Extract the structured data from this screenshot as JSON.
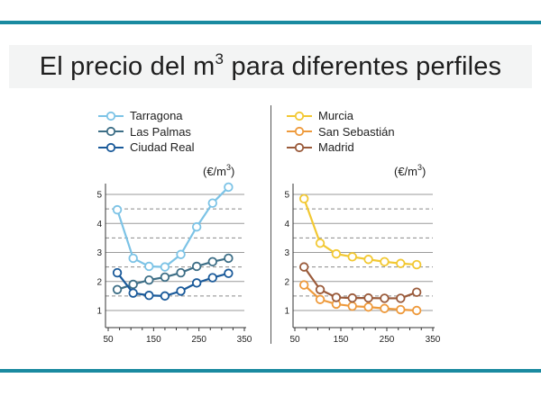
{
  "title": {
    "main": "El precio del m",
    "superscript": "3",
    "rest": " para diferentes perfiles"
  },
  "colors": {
    "band": "#1a8aa0",
    "tarragona": "#7cc3e6",
    "las_palmas": "#3d6e86",
    "ciudad_real": "#1a5a9a",
    "murcia": "#f2c832",
    "san_sebastian": "#ee9a3c",
    "madrid": "#9a5a3a",
    "grid_solid": "#9a9a9a",
    "grid_dashed": "#8a8a8a"
  },
  "chart_data": [
    {
      "type": "line",
      "unit_label": "(€/m",
      "unit_superscript": "3",
      "unit_close": ")",
      "x_ticks": [
        50,
        150,
        250,
        350
      ],
      "y_ticks": [
        1,
        2,
        3,
        4,
        5
      ],
      "xlim": [
        50,
        350
      ],
      "ylim": [
        0.6,
        5.5
      ],
      "x": [
        70,
        105,
        140,
        175,
        210,
        245,
        280,
        315
      ],
      "series": [
        {
          "name": "Tarragona",
          "color_key": "tarragona",
          "values": [
            4.47,
            2.8,
            2.52,
            2.5,
            2.93,
            3.88,
            4.7,
            5.25
          ]
        },
        {
          "name": "Las Palmas",
          "color_key": "las_palmas",
          "values": [
            1.72,
            1.9,
            2.05,
            2.15,
            2.3,
            2.52,
            2.68,
            2.8
          ]
        },
        {
          "name": "Ciudad Real",
          "color_key": "ciudad_real",
          "values": [
            2.3,
            1.6,
            1.52,
            1.5,
            1.67,
            1.95,
            2.13,
            2.28
          ]
        }
      ],
      "legend_position": "top-left",
      "grid": true
    },
    {
      "type": "line",
      "unit_label": "(€/m",
      "unit_superscript": "3",
      "unit_close": ")",
      "x_ticks": [
        50,
        150,
        250,
        350
      ],
      "y_ticks": [
        1,
        2,
        3,
        4,
        5
      ],
      "xlim": [
        50,
        350
      ],
      "ylim": [
        0.6,
        5.5
      ],
      "x": [
        70,
        105,
        140,
        175,
        210,
        245,
        280,
        315
      ],
      "series": [
        {
          "name": "Murcia",
          "color_key": "murcia",
          "values": [
            4.85,
            3.32,
            2.95,
            2.85,
            2.76,
            2.68,
            2.62,
            2.58
          ]
        },
        {
          "name": "San Sebastián",
          "color_key": "san_sebastian",
          "values": [
            1.88,
            1.38,
            1.22,
            1.15,
            1.12,
            1.07,
            1.03,
            1.0
          ]
        },
        {
          "name": "Madrid",
          "color_key": "madrid",
          "values": [
            2.5,
            1.72,
            1.45,
            1.43,
            1.43,
            1.42,
            1.42,
            1.63
          ]
        }
      ],
      "legend_position": "top-left",
      "grid": true
    }
  ]
}
